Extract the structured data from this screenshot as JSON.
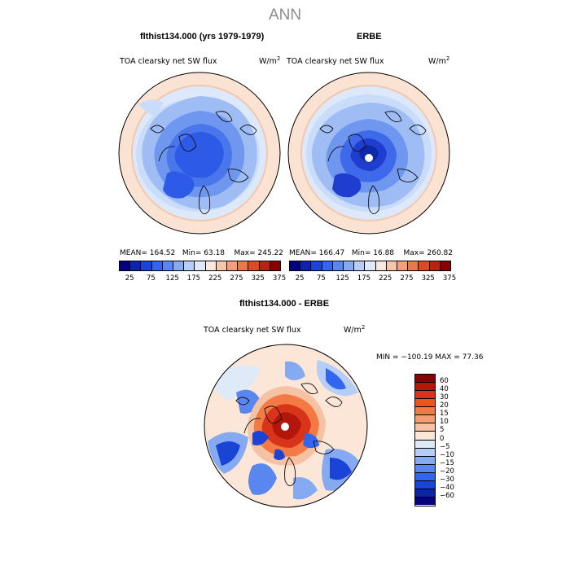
{
  "title": "ANN",
  "panels": {
    "left": {
      "title": "flthist134.000 (yrs 1979-1979)",
      "variable": "TOA clearsky net SW flux",
      "units_base": "W/m",
      "units_exp": "2",
      "mean": "164.52",
      "min": "63.18",
      "max": "245.22"
    },
    "right": {
      "title": "ERBE",
      "variable": "TOA clearsky net SW flux",
      "units_base": "W/m",
      "units_exp": "2",
      "mean": "166.47",
      "min": "16.88",
      "max": "260.82"
    },
    "diff": {
      "title": "flthist134.000 - ERBE",
      "variable": "TOA clearsky net SW flux",
      "units_base": "W/m",
      "units_exp": "2",
      "range_text": "MIN = −100.19 MAX =  77.36"
    }
  },
  "labels": {
    "mean": "MEAN=",
    "min": "Min=",
    "max": "Max="
  },
  "colorbar_top": {
    "tick_labels": [
      "25",
      "75",
      "125",
      "175",
      "225",
      "275",
      "325",
      "375"
    ],
    "colors": [
      "#000080",
      "#0b24a8",
      "#1a44d6",
      "#3366ee",
      "#5a86f0",
      "#86aaf2",
      "#b5cdf7",
      "#dde9fb",
      "#fbe8dc",
      "#f6c6ab",
      "#f0a07a",
      "#e8784e",
      "#d84b25",
      "#b52410",
      "#850000"
    ]
  },
  "colorbar_diff": {
    "tick_labels": [
      "60",
      "40",
      "30",
      "20",
      "15",
      "10",
      "5",
      "0",
      "−5",
      "−10",
      "−15",
      "−20",
      "−30",
      "−40",
      "−60"
    ],
    "colors": [
      "#8b0000",
      "#b3160b",
      "#d8341a",
      "#ec5424",
      "#f47a45",
      "#f59d74",
      "#f6c2a4",
      "#fbe6d8",
      "#dfeaf9",
      "#b5cdf7",
      "#86aaf2",
      "#5a86f0",
      "#3366ee",
      "#1a44d6",
      "#0b24a8",
      "#000080"
    ]
  }
}
